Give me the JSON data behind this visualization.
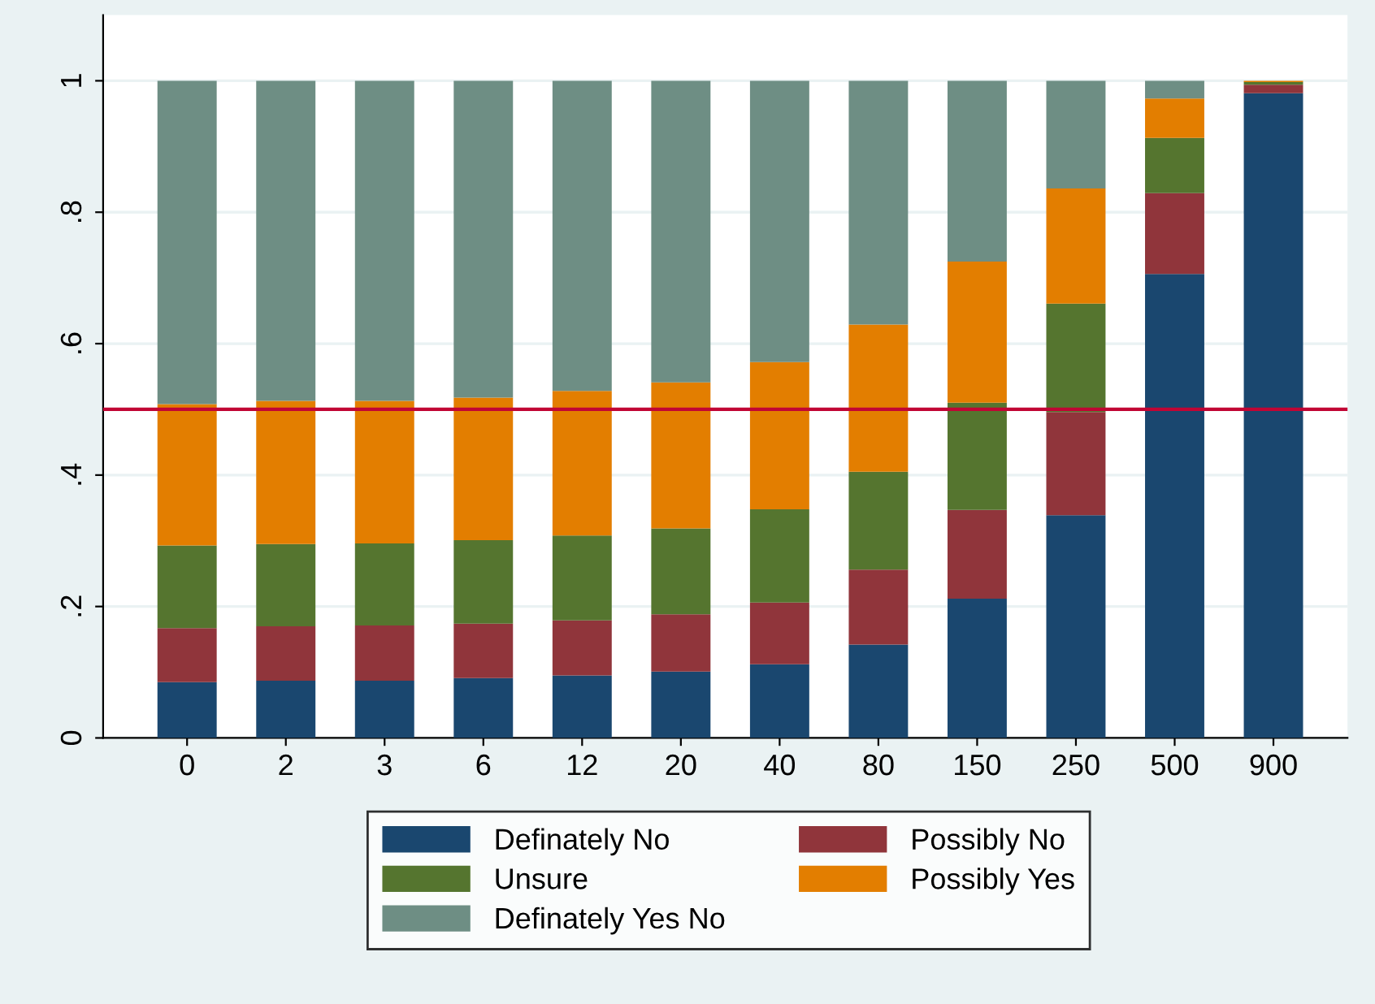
{
  "chart_data": {
    "type": "bar",
    "stacked": true,
    "categories": [
      "0",
      "2",
      "3",
      "6",
      "12",
      "20",
      "40",
      "80",
      "150",
      "250",
      "500",
      "900"
    ],
    "series": [
      {
        "name": "Definately No",
        "color": "#1a476f",
        "values": [
          0.085,
          0.087,
          0.087,
          0.091,
          0.095,
          0.101,
          0.112,
          0.142,
          0.212,
          0.339,
          0.706,
          0.981
        ]
      },
      {
        "name": "Possibly No",
        "color": "#90353b",
        "values": [
          0.082,
          0.083,
          0.084,
          0.083,
          0.084,
          0.087,
          0.094,
          0.114,
          0.135,
          0.157,
          0.123,
          0.013
        ]
      },
      {
        "name": "Unsure",
        "color": "#55752f",
        "values": [
          0.126,
          0.125,
          0.125,
          0.127,
          0.129,
          0.131,
          0.142,
          0.149,
          0.163,
          0.165,
          0.084,
          0.004
        ]
      },
      {
        "name": "Possibly Yes",
        "color": "#e37e00",
        "values": [
          0.215,
          0.218,
          0.217,
          0.217,
          0.22,
          0.222,
          0.224,
          0.224,
          0.215,
          0.175,
          0.06,
          0.002
        ]
      },
      {
        "name": "Definately Yes No",
        "color": "#6e8e84",
        "values": [
          0.492,
          0.487,
          0.487,
          0.482,
          0.472,
          0.459,
          0.428,
          0.371,
          0.275,
          0.164,
          0.027,
          0.0
        ]
      }
    ],
    "ylim": [
      0,
      1.1
    ],
    "yticks": [
      0,
      {
        "value": 0.2,
        "label": ".2"
      },
      {
        "value": 0.4,
        "label": ".4"
      },
      {
        "value": 0.6,
        "label": ".6"
      },
      {
        "value": 0.8,
        "label": ".8"
      },
      1
    ],
    "grid": "y",
    "legend": "bottom",
    "ref_lines": [
      {
        "axis": "y",
        "value": 0.5,
        "color": "#c10534"
      }
    ]
  }
}
